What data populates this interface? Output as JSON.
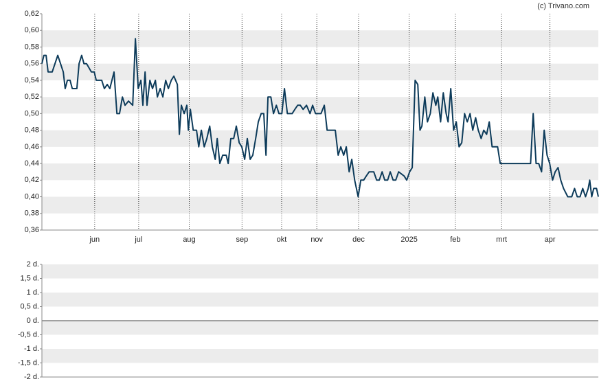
{
  "watermark": "(c) Trivano.com",
  "chart_data": [
    {
      "type": "line",
      "xlim": [
        0,
        253
      ],
      "xticks": [
        {
          "value": 24,
          "label": "jun"
        },
        {
          "value": 44,
          "label": "jul"
        },
        {
          "value": 67,
          "label": "aug"
        },
        {
          "value": 91,
          "label": "sep"
        },
        {
          "value": 109,
          "label": "okt"
        },
        {
          "value": 125,
          "label": "nov"
        },
        {
          "value": 144,
          "label": "dec"
        },
        {
          "value": 167,
          "label": "2025"
        },
        {
          "value": 188,
          "label": "feb"
        },
        {
          "value": 209,
          "label": "mrt"
        },
        {
          "value": 231,
          "label": "apr"
        }
      ],
      "ylim": [
        0.36,
        0.62
      ],
      "yticks": [
        {
          "value": 0.36,
          "label": "0,36"
        },
        {
          "value": 0.38,
          "label": "0,38"
        },
        {
          "value": 0.4,
          "label": "0,40"
        },
        {
          "value": 0.42,
          "label": "0,42"
        },
        {
          "value": 0.44,
          "label": "0,44"
        },
        {
          "value": 0.46,
          "label": "0,46"
        },
        {
          "value": 0.48,
          "label": "0,48"
        },
        {
          "value": 0.5,
          "label": "0,50"
        },
        {
          "value": 0.52,
          "label": "0,52"
        },
        {
          "value": 0.54,
          "label": "0,54"
        },
        {
          "value": 0.56,
          "label": "0,56"
        },
        {
          "value": 0.58,
          "label": "0,58"
        },
        {
          "value": 0.6,
          "label": "0,60"
        },
        {
          "value": 0.62,
          "label": "0,62"
        }
      ],
      "grid": true,
      "color": "#0d3b5a",
      "x": [
        0,
        0.9,
        1.9,
        2.8,
        4.7,
        7.2,
        9.7,
        10.6,
        11.6,
        12.8,
        13.8,
        15.9,
        16.9,
        18.1,
        19.1,
        20.3,
        22.5,
        23.8,
        24.7,
        27.2,
        28.4,
        29.7,
        30.9,
        32.8,
        34.1,
        35.3,
        36.6,
        37.8,
        39.4,
        41.3,
        42.5,
        43.8,
        45,
        45.9,
        46.9,
        47.8,
        49.1,
        50.3,
        51.6,
        52.5,
        53.8,
        55,
        56.3,
        57.5,
        58.8,
        60,
        61.6,
        62.5,
        63.4,
        64.7,
        65.9,
        66.6,
        67.5,
        68.8,
        70.3,
        71.3,
        72.5,
        73.8,
        75,
        76.3,
        77.5,
        78.8,
        79.7,
        80.9,
        82.2,
        83.8,
        84.7,
        85.9,
        87.2,
        88.4,
        89.7,
        90.9,
        92.2,
        93.4,
        94.7,
        95.9,
        97.2,
        98.4,
        99.7,
        100.9,
        101.9,
        102.8,
        104.1,
        105.3,
        106.6,
        107.8,
        109.1,
        110.3,
        111.6,
        113.8,
        115,
        116.3,
        117.5,
        118.8,
        120.3,
        121.9,
        123.1,
        124.4,
        126.9,
        128.4,
        129.7,
        133.4,
        134.7,
        135.9,
        137.2,
        138.4,
        139.7,
        140.9,
        142.2,
        143.8,
        145,
        146.3,
        147.5,
        148.8,
        150.9,
        152.2,
        153.4,
        154.7,
        155.9,
        157.2,
        158.4,
        159.7,
        160.9,
        162.2,
        164.7,
        165.9,
        167.2,
        168.4,
        169.7,
        170.9,
        171.9,
        172.8,
        174.1,
        175.3,
        176.6,
        177.8,
        179.1,
        180,
        181.3,
        182.5,
        183.8,
        184.7,
        185.9,
        187.2,
        188.4,
        189.7,
        190.9,
        192.2,
        193.4,
        194.7,
        195.9,
        197.2,
        198.4,
        199.7,
        200.9,
        202.2,
        203.4,
        204.7,
        205.9,
        207.2,
        208.4,
        210,
        211.3,
        213.8,
        217.5,
        220.9,
        222.2,
        223.4,
        224.7,
        225.9,
        227.2,
        228.4,
        229.7,
        230.9,
        232.2,
        233.4,
        234.7,
        235.9,
        237.2,
        239.1,
        240.9,
        242.2,
        243.4,
        244.7,
        245.9,
        247.2,
        248.4,
        249.1,
        250,
        250.9,
        252.2,
        253
      ],
      "values": [
        0.56,
        0.57,
        0.57,
        0.55,
        0.55,
        0.57,
        0.55,
        0.53,
        0.54,
        0.54,
        0.53,
        0.53,
        0.56,
        0.57,
        0.56,
        0.56,
        0.55,
        0.55,
        0.54,
        0.54,
        0.53,
        0.535,
        0.53,
        0.55,
        0.5,
        0.5,
        0.52,
        0.51,
        0.515,
        0.51,
        0.59,
        0.53,
        0.54,
        0.51,
        0.55,
        0.51,
        0.54,
        0.53,
        0.54,
        0.52,
        0.53,
        0.52,
        0.54,
        0.53,
        0.54,
        0.545,
        0.535,
        0.475,
        0.51,
        0.5,
        0.51,
        0.48,
        0.505,
        0.48,
        0.48,
        0.46,
        0.48,
        0.46,
        0.47,
        0.485,
        0.46,
        0.445,
        0.47,
        0.44,
        0.45,
        0.45,
        0.44,
        0.47,
        0.47,
        0.485,
        0.465,
        0.46,
        0.445,
        0.47,
        0.445,
        0.45,
        0.47,
        0.49,
        0.5,
        0.5,
        0.45,
        0.52,
        0.52,
        0.5,
        0.51,
        0.5,
        0.5,
        0.53,
        0.5,
        0.5,
        0.505,
        0.51,
        0.51,
        0.505,
        0.51,
        0.5,
        0.51,
        0.5,
        0.5,
        0.51,
        0.48,
        0.48,
        0.45,
        0.46,
        0.45,
        0.46,
        0.43,
        0.445,
        0.42,
        0.4,
        0.42,
        0.42,
        0.425,
        0.43,
        0.43,
        0.42,
        0.42,
        0.43,
        0.42,
        0.42,
        0.43,
        0.42,
        0.42,
        0.43,
        0.425,
        0.42,
        0.43,
        0.435,
        0.54,
        0.535,
        0.48,
        0.485,
        0.52,
        0.49,
        0.5,
        0.525,
        0.51,
        0.52,
        0.49,
        0.525,
        0.5,
        0.49,
        0.53,
        0.48,
        0.49,
        0.46,
        0.465,
        0.5,
        0.49,
        0.5,
        0.48,
        0.495,
        0.48,
        0.47,
        0.48,
        0.475,
        0.49,
        0.46,
        0.46,
        0.46,
        0.44,
        0.44,
        0.44,
        0.44,
        0.44,
        0.44,
        0.44,
        0.5,
        0.44,
        0.44,
        0.43,
        0.48,
        0.45,
        0.44,
        0.42,
        0.43,
        0.435,
        0.42,
        0.41,
        0.4,
        0.4,
        0.41,
        0.4,
        0.4,
        0.41,
        0.4,
        0.41,
        0.42,
        0.4,
        0.41,
        0.41,
        0.4
      ]
    },
    {
      "type": "bar",
      "ylim": [
        -2,
        2
      ],
      "yticks": [
        {
          "value": -2,
          "label": "-2 d."
        },
        {
          "value": -1.5,
          "label": "-1,5 d."
        },
        {
          "value": -1,
          "label": "-1 d."
        },
        {
          "value": -0.5,
          "label": "-0,5 d."
        },
        {
          "value": 0,
          "label": "0 d."
        },
        {
          "value": 0.5,
          "label": "0,5 d."
        },
        {
          "value": 1,
          "label": "1 d."
        },
        {
          "value": 1.5,
          "label": "1,5 d."
        },
        {
          "value": 2,
          "label": "2 d."
        }
      ],
      "grid": true
    }
  ]
}
